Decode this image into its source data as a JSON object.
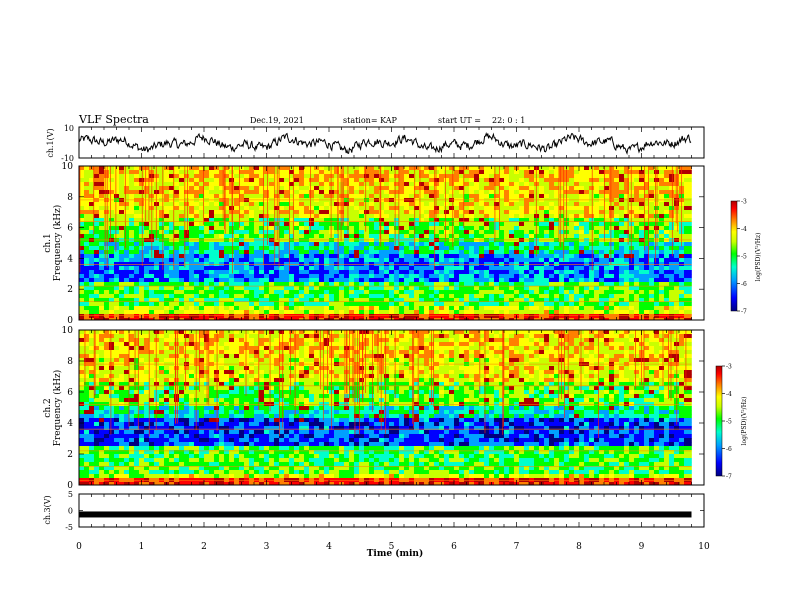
{
  "header": {
    "title": "VLF Spectra",
    "date": "Dec.19, 2021",
    "station": "station= KAP",
    "start_label": "start  UT =",
    "start_value": "22: 0  : 1"
  },
  "panels": {
    "ch1_wave_label": "ch.1(V)",
    "ch1_spec_label_1": "ch.1",
    "ch1_spec_label_2": "Frequency (kHz)",
    "ch2_spec_label_1": "ch.2",
    "ch2_spec_label_2": "Frequency (kHz)",
    "ch3_wave_label": "ch.3(V)",
    "xlabel": "Time (min)"
  },
  "colorbar": {
    "label": "log(PSD)(V²/Hz)",
    "ticks": [
      "-3",
      "-4",
      "-5",
      "-6",
      "-7"
    ],
    "range": [
      -7,
      -3
    ],
    "colors": [
      "#000080",
      "#0000ff",
      "#00a0ff",
      "#00ffcc",
      "#00ff00",
      "#c8ff00",
      "#ffff00",
      "#ff8000",
      "#ff0000",
      "#b00000"
    ]
  },
  "chart_data": [
    {
      "type": "line",
      "name": "ch1-waveform",
      "ylabel": "ch.1(V)",
      "ylim": [
        -10,
        10
      ],
      "y_ticks": [
        "10",
        "-10"
      ],
      "xlim": [
        0,
        10
      ],
      "x_max_data": 9.8,
      "approx_range": [
        -7,
        7
      ],
      "color": "#000000"
    },
    {
      "type": "heatmap",
      "name": "ch1-spectrogram",
      "ylabel": "Frequency (kHz)",
      "ylim": [
        0,
        10
      ],
      "y_ticks": [
        "0",
        "2",
        "4",
        "6",
        "8",
        "10"
      ],
      "xlim": [
        0,
        10
      ],
      "x_max_data": 9.8,
      "value_range": [
        -7,
        -3
      ]
    },
    {
      "type": "heatmap",
      "name": "ch2-spectrogram",
      "ylabel": "Frequency (kHz)",
      "ylim": [
        0,
        10
      ],
      "y_ticks": [
        "0",
        "2",
        "4",
        "6",
        "8",
        "10"
      ],
      "xlim": [
        0,
        10
      ],
      "x_max_data": 9.8,
      "value_range": [
        -7,
        -3
      ]
    },
    {
      "type": "line",
      "name": "ch3-waveform",
      "ylabel": "ch.3(V)",
      "ylim": [
        -5,
        5
      ],
      "y_ticks": [
        "5",
        "0",
        "-5"
      ],
      "xlim": [
        0,
        10
      ],
      "x_max_data": 9.8,
      "constant_value": -1.2,
      "color": "#000000"
    }
  ],
  "x_ticks": [
    "0",
    "1",
    "2",
    "3",
    "4",
    "5",
    "6",
    "7",
    "8",
    "9",
    "10"
  ]
}
